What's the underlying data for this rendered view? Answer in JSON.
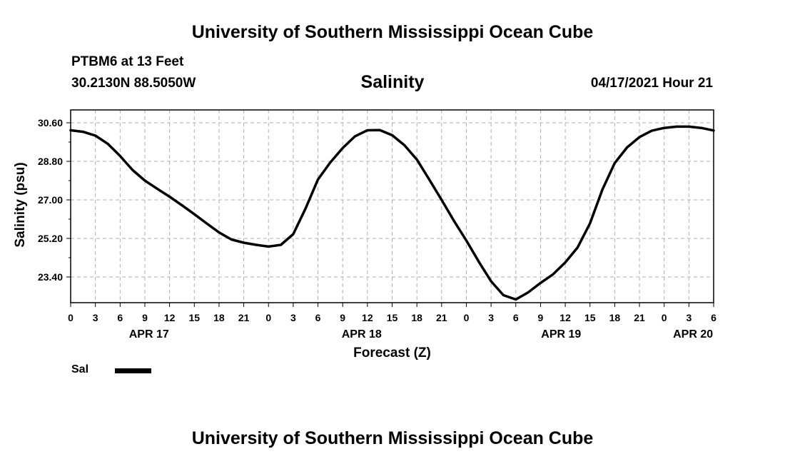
{
  "header": {
    "top_title": "University of Southern Mississippi Ocean Cube",
    "station": "PTBM6 at 13 Feet",
    "coords": "30.2130N  88.5050W",
    "datetime": "04/17/2021 Hour 21",
    "bottom_title": "University of Southern Mississippi Ocean Cube"
  },
  "legend": {
    "label": "Sal",
    "color": "#000000"
  },
  "chart_data": {
    "type": "line",
    "title": "Salinity",
    "xlabel": "Forecast (Z)",
    "ylabel": "Salinity (psu)",
    "ylim": [
      22.2,
      31.2
    ],
    "yticks": [
      30.6,
      28.8,
      27.0,
      25.2,
      23.4
    ],
    "ytick_labels": [
      "30.60",
      "28.80",
      "27.00",
      "25.20",
      "23.40"
    ],
    "xlim": [
      0,
      78
    ],
    "x_tick_hours": [
      0,
      3,
      6,
      9,
      12,
      15,
      18,
      21,
      24,
      27,
      30,
      33,
      36,
      39,
      42,
      45,
      48,
      51,
      54,
      57,
      60,
      63,
      66,
      69,
      72,
      75,
      78
    ],
    "x_tick_labels": [
      "0",
      "3",
      "6",
      "9",
      "12",
      "15",
      "18",
      "21",
      "0",
      "3",
      "6",
      "9",
      "12",
      "15",
      "18",
      "21",
      "0",
      "3",
      "6",
      "9",
      "12",
      "15",
      "18",
      "21",
      "0",
      "3",
      "6"
    ],
    "date_labels": [
      {
        "hour": 9.5,
        "label": "APR 17"
      },
      {
        "hour": 35.3,
        "label": "APR 18"
      },
      {
        "hour": 59.5,
        "label": "APR 19"
      },
      {
        "hour": 75.5,
        "label": "APR 20"
      }
    ],
    "grid": true,
    "series": [
      {
        "name": "Sal",
        "x": [
          0,
          1.5,
          3,
          4.5,
          6,
          7.5,
          9,
          10.5,
          12,
          13.5,
          15,
          16.5,
          18,
          19.5,
          21,
          22.5,
          24,
          25.5,
          27,
          28.5,
          30,
          31.5,
          33,
          34.5,
          36,
          37.5,
          39,
          40.5,
          42,
          43.5,
          45,
          46.5,
          48,
          49.5,
          51,
          52.5,
          54,
          55.5,
          57,
          58.5,
          60,
          61.5,
          63,
          64.5,
          66,
          67.5,
          69,
          70.5,
          72,
          73.5,
          75,
          76.5,
          78
        ],
        "values": [
          30.25,
          30.18,
          30.0,
          29.62,
          29.05,
          28.4,
          27.9,
          27.52,
          27.15,
          26.75,
          26.33,
          25.9,
          25.48,
          25.15,
          25.0,
          24.9,
          24.82,
          24.9,
          25.4,
          26.6,
          27.95,
          28.75,
          29.42,
          29.97,
          30.25,
          30.26,
          30.02,
          29.55,
          28.88,
          27.95,
          27.0,
          26.02,
          25.1,
          24.12,
          23.2,
          22.55,
          22.35,
          22.68,
          23.12,
          23.52,
          24.08,
          24.78,
          25.9,
          27.48,
          28.72,
          29.45,
          29.93,
          30.23,
          30.36,
          30.42,
          30.42,
          30.36,
          30.24
        ]
      }
    ]
  }
}
